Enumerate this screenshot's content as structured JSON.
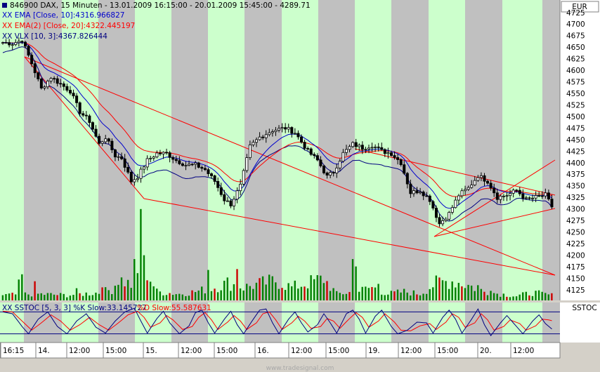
{
  "header": {
    "symbol_line": "846900  DAX, 15 Minuten - 13.01.2009 16:15:00 - 20.01.2009 15:45:00 - 4289.71",
    "ema10_label": "XX EMA [Close, 10]:4316.966827",
    "ema20_label": "XX EMA(2) [Close, 20]:4322.445197",
    "vlx_label": "XX VLX [10, 3]:4367.826444"
  },
  "currency_label": "EUR",
  "stoch": {
    "label_k": "XX SSTOC [5, 3, 3] %K Slow:33.145727",
    "label_d": "%D Slow:55.587631",
    "side_label": "SSTOC"
  },
  "watermark": "www.tradesignal.com",
  "colors": {
    "background": "#ffffff",
    "session_band": "#ccffcc",
    "night_band": "#c0c0c0",
    "ema10": "#0000cc",
    "ema20": "#ff0000",
    "vlx": "#000080",
    "channel": "#ff0000",
    "volume": "#008000",
    "volume_down": "#cc0000",
    "stoch_k": "#000080",
    "stoch_d": "#ff0000"
  },
  "chart_data": {
    "type": "candlestick",
    "y_axis": {
      "ylim": [
        4102,
        4752
      ],
      "ticks": [
        4125,
        4150,
        4175,
        4200,
        4225,
        4250,
        4275,
        4300,
        4325,
        4350,
        4375,
        4400,
        4425,
        4450,
        4475,
        4500,
        4525,
        4550,
        4575,
        4600,
        4625,
        4650,
        4675,
        4700,
        4725
      ]
    },
    "x_ticks": [
      "16:15",
      "14.",
      "12:00",
      "15:00",
      "15.",
      "12:00",
      "15:00",
      "16.",
      "12:00",
      "15:00",
      "19.",
      "12:00",
      "15:00",
      "20.",
      "12:00"
    ],
    "price_anchors": [
      [
        0,
        4660
      ],
      [
        3,
        4658
      ],
      [
        6,
        4665
      ],
      [
        9,
        4615
      ],
      [
        12,
        4560
      ],
      [
        15,
        4585
      ],
      [
        18,
        4570
      ],
      [
        21,
        4555
      ],
      [
        24,
        4510
      ],
      [
        27,
        4490
      ],
      [
        30,
        4440
      ],
      [
        32,
        4455
      ],
      [
        35,
        4415
      ],
      [
        37,
        4410
      ],
      [
        40,
        4360
      ],
      [
        42,
        4370
      ],
      [
        45,
        4405
      ],
      [
        48,
        4420
      ],
      [
        51,
        4420
      ],
      [
        54,
        4405
      ],
      [
        57,
        4395
      ],
      [
        60,
        4395
      ],
      [
        63,
        4385
      ],
      [
        66,
        4360
      ],
      [
        69,
        4320
      ],
      [
        71,
        4310
      ],
      [
        74,
        4350
      ],
      [
        77,
        4435
      ],
      [
        80,
        4455
      ],
      [
        84,
        4470
      ],
      [
        88,
        4475
      ],
      [
        91,
        4465
      ],
      [
        95,
        4425
      ],
      [
        98,
        4405
      ],
      [
        101,
        4370
      ],
      [
        103,
        4380
      ],
      [
        106,
        4420
      ],
      [
        109,
        4440
      ],
      [
        112,
        4432
      ],
      [
        115,
        4438
      ],
      [
        118,
        4425
      ],
      [
        121,
        4420
      ],
      [
        124,
        4400
      ],
      [
        127,
        4335
      ],
      [
        130,
        4340
      ],
      [
        133,
        4320
      ],
      [
        136,
        4268
      ],
      [
        139,
        4290
      ],
      [
        142,
        4330
      ],
      [
        145,
        4345
      ],
      [
        148,
        4372
      ],
      [
        151,
        4360
      ],
      [
        154,
        4325
      ],
      [
        157,
        4330
      ],
      [
        160,
        4340
      ],
      [
        163,
        4320
      ],
      [
        166,
        4325
      ],
      [
        169,
        4330
      ],
      [
        171,
        4305
      ]
    ],
    "volume_anchors": [
      [
        0,
        12
      ],
      [
        10,
        15
      ],
      [
        20,
        12
      ],
      [
        30,
        18
      ],
      [
        34,
        25
      ],
      [
        36,
        50
      ],
      [
        40,
        35
      ],
      [
        44,
        80
      ],
      [
        48,
        20
      ],
      [
        55,
        15
      ],
      [
        60,
        20
      ],
      [
        66,
        30
      ],
      [
        70,
        40
      ],
      [
        75,
        30
      ],
      [
        80,
        38
      ],
      [
        85,
        45
      ],
      [
        90,
        30
      ],
      [
        95,
        40
      ],
      [
        100,
        50
      ],
      [
        104,
        15
      ],
      [
        110,
        20
      ],
      [
        115,
        30
      ],
      [
        120,
        15
      ],
      [
        125,
        20
      ],
      [
        130,
        15
      ],
      [
        135,
        40
      ],
      [
        140,
        45
      ],
      [
        145,
        35
      ],
      [
        150,
        20
      ],
      [
        155,
        15
      ],
      [
        160,
        10
      ],
      [
        165,
        18
      ],
      [
        171,
        12
      ]
    ],
    "volume_spikes": [
      [
        41,
        95
      ],
      [
        43,
        210
      ],
      [
        109,
        95
      ],
      [
        110,
        78
      ],
      [
        64,
        70
      ],
      [
        73,
        72
      ],
      [
        6,
        60
      ],
      [
        5,
        48
      ],
      [
        10,
        44
      ],
      [
        23,
        28
      ],
      [
        31,
        30
      ],
      [
        117,
        38
      ],
      [
        148,
        35
      ],
      [
        152,
        22
      ]
    ],
    "stoch_k": [
      [
        0,
        80
      ],
      [
        3,
        75
      ],
      [
        6,
        40
      ],
      [
        8,
        20
      ],
      [
        11,
        60
      ],
      [
        14,
        80
      ],
      [
        17,
        40
      ],
      [
        20,
        20
      ],
      [
        23,
        55
      ],
      [
        26,
        75
      ],
      [
        29,
        38
      ],
      [
        32,
        22
      ],
      [
        35,
        55
      ],
      [
        38,
        80
      ],
      [
        41,
        90
      ],
      [
        43,
        55
      ],
      [
        45,
        22
      ],
      [
        48,
        62
      ],
      [
        50,
        82
      ],
      [
        52,
        50
      ],
      [
        55,
        20
      ],
      [
        58,
        42
      ],
      [
        60,
        78
      ],
      [
        62,
        85
      ],
      [
        64,
        50
      ],
      [
        66,
        22
      ],
      [
        69,
        60
      ],
      [
        71,
        82
      ],
      [
        73,
        45
      ],
      [
        75,
        20
      ],
      [
        78,
        60
      ],
      [
        80,
        85
      ],
      [
        82,
        88
      ],
      [
        84,
        50
      ],
      [
        86,
        20
      ],
      [
        89,
        60
      ],
      [
        91,
        80
      ],
      [
        93,
        50
      ],
      [
        95,
        25
      ],
      [
        98,
        45
      ],
      [
        100,
        75
      ],
      [
        102,
        50
      ],
      [
        104,
        22
      ],
      [
        107,
        75
      ],
      [
        109,
        85
      ],
      [
        111,
        60
      ],
      [
        113,
        22
      ],
      [
        116,
        68
      ],
      [
        118,
        85
      ],
      [
        121,
        40
      ],
      [
        123,
        20
      ],
      [
        126,
        30
      ],
      [
        129,
        52
      ],
      [
        132,
        50
      ],
      [
        134,
        22
      ],
      [
        137,
        65
      ],
      [
        139,
        85
      ],
      [
        141,
        60
      ],
      [
        143,
        22
      ],
      [
        146,
        60
      ],
      [
        148,
        88
      ],
      [
        150,
        45
      ],
      [
        152,
        15
      ],
      [
        155,
        50
      ],
      [
        157,
        70
      ],
      [
        160,
        40
      ],
      [
        162,
        20
      ],
      [
        165,
        55
      ],
      [
        167,
        72
      ],
      [
        169,
        48
      ],
      [
        171,
        33
      ]
    ],
    "stoch_d": [
      [
        0,
        82
      ],
      [
        3,
        80
      ],
      [
        6,
        55
      ],
      [
        9,
        30
      ],
      [
        12,
        50
      ],
      [
        15,
        72
      ],
      [
        18,
        55
      ],
      [
        21,
        30
      ],
      [
        24,
        45
      ],
      [
        27,
        65
      ],
      [
        30,
        45
      ],
      [
        33,
        30
      ],
      [
        36,
        50
      ],
      [
        39,
        72
      ],
      [
        42,
        82
      ],
      [
        44,
        65
      ],
      [
        46,
        38
      ],
      [
        49,
        50
      ],
      [
        51,
        70
      ],
      [
        53,
        58
      ],
      [
        56,
        32
      ],
      [
        59,
        40
      ],
      [
        61,
        65
      ],
      [
        63,
        78
      ],
      [
        65,
        58
      ],
      [
        67,
        32
      ],
      [
        70,
        52
      ],
      [
        72,
        70
      ],
      [
        74,
        55
      ],
      [
        76,
        32
      ],
      [
        79,
        50
      ],
      [
        81,
        75
      ],
      [
        83,
        80
      ],
      [
        85,
        58
      ],
      [
        87,
        32
      ],
      [
        90,
        50
      ],
      [
        92,
        68
      ],
      [
        94,
        55
      ],
      [
        96,
        35
      ],
      [
        99,
        40
      ],
      [
        101,
        62
      ],
      [
        103,
        55
      ],
      [
        105,
        35
      ],
      [
        108,
        62
      ],
      [
        110,
        78
      ],
      [
        112,
        65
      ],
      [
        114,
        38
      ],
      [
        117,
        55
      ],
      [
        119,
        75
      ],
      [
        122,
        52
      ],
      [
        124,
        30
      ],
      [
        127,
        28
      ],
      [
        130,
        42
      ],
      [
        133,
        48
      ],
      [
        135,
        32
      ],
      [
        138,
        52
      ],
      [
        140,
        75
      ],
      [
        142,
        65
      ],
      [
        144,
        38
      ],
      [
        147,
        50
      ],
      [
        149,
        75
      ],
      [
        151,
        58
      ],
      [
        153,
        30
      ],
      [
        156,
        40
      ],
      [
        158,
        58
      ],
      [
        161,
        48
      ],
      [
        163,
        30
      ],
      [
        166,
        42
      ],
      [
        168,
        60
      ],
      [
        170,
        58
      ],
      [
        171,
        56
      ]
    ],
    "stoch_levels": [
      80,
      20
    ]
  }
}
